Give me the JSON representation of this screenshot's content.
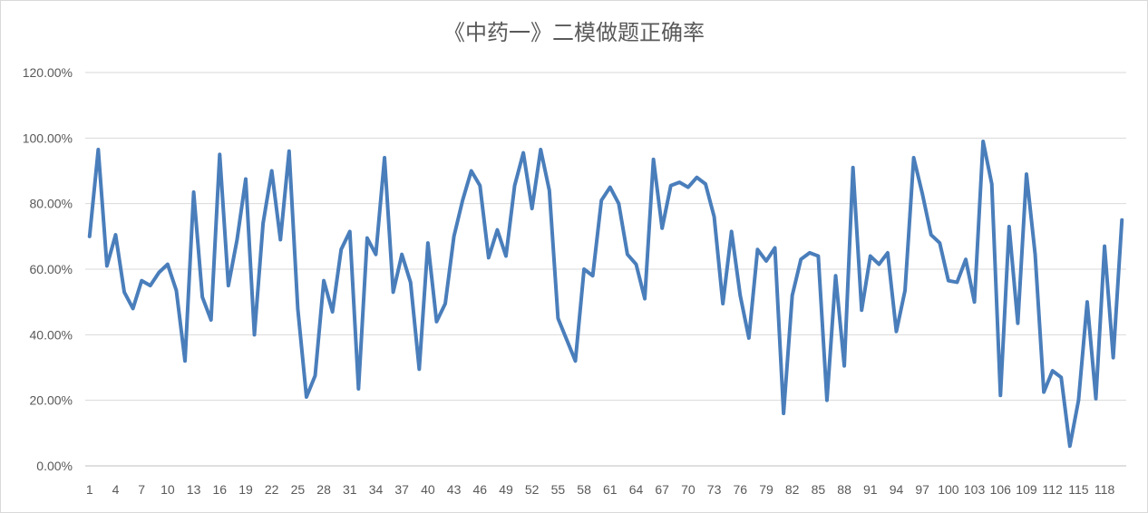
{
  "chart_data": {
    "type": "line",
    "title": "《中药一》二模做题正确率",
    "xlabel": "",
    "ylabel": "",
    "ylim": [
      0,
      1.2
    ],
    "y_ticks": [
      "0.00%",
      "20.00%",
      "40.00%",
      "60.00%",
      "80.00%",
      "100.00%",
      "120.00%"
    ],
    "x_tick_labels": [
      "1",
      "4",
      "7",
      "10",
      "13",
      "16",
      "19",
      "22",
      "25",
      "28",
      "31",
      "34",
      "37",
      "40",
      "43",
      "46",
      "49",
      "52",
      "55",
      "58",
      "61",
      "64",
      "67",
      "70",
      "73",
      "76",
      "79",
      "82",
      "85",
      "88",
      "91",
      "94",
      "97",
      "100",
      "103",
      "106",
      "109",
      "112",
      "115",
      "118"
    ],
    "grid": true,
    "legend": "none",
    "line_color": "#4a7ebb",
    "series": [
      {
        "values": [
          0.7,
          0.965,
          0.61,
          0.705,
          0.53,
          0.48,
          0.565,
          0.55,
          0.59,
          0.615,
          0.535,
          0.32,
          0.835,
          0.515,
          0.445,
          0.95,
          0.55,
          0.69,
          0.875,
          0.4,
          0.74,
          0.9,
          0.69,
          0.96,
          0.48,
          0.21,
          0.275,
          0.565,
          0.47,
          0.66,
          0.715,
          0.235,
          0.695,
          0.645,
          0.94,
          0.53,
          0.645,
          0.56,
          0.295,
          0.68,
          0.44,
          0.495,
          0.7,
          0.81,
          0.9,
          0.855,
          0.635,
          0.72,
          0.64,
          0.855,
          0.955,
          0.785,
          0.965,
          0.84,
          0.45,
          0.385,
          0.32,
          0.6,
          0.58,
          0.81,
          0.85,
          0.8,
          0.645,
          0.615,
          0.51,
          0.935,
          0.725,
          0.855,
          0.865,
          0.85,
          0.88,
          0.86,
          0.76,
          0.495,
          0.715,
          0.52,
          0.39,
          0.66,
          0.625,
          0.665,
          0.16,
          0.52,
          0.63,
          0.65,
          0.64,
          0.2,
          0.58,
          0.305,
          0.91,
          0.475,
          0.64,
          0.615,
          0.65,
          0.41,
          0.535,
          0.94,
          0.83,
          0.705,
          0.68,
          0.565,
          0.56,
          0.63,
          0.5,
          0.99,
          0.86,
          0.215,
          0.73,
          0.435,
          0.89,
          0.645,
          0.225,
          0.29,
          0.27,
          0.06,
          0.2,
          0.5,
          0.205,
          0.67,
          0.33,
          0.75
        ]
      }
    ]
  }
}
